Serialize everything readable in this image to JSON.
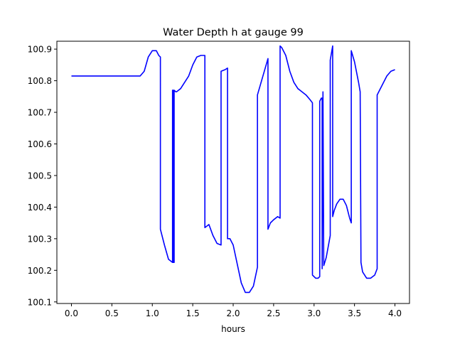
{
  "chart_data": {
    "type": "line",
    "title": "Water Depth h at gauge 99",
    "xlabel": "hours",
    "ylabel": "",
    "xlim": [
      -0.18,
      4.18
    ],
    "ylim": [
      100.095,
      100.925
    ],
    "xticks": [
      0.0,
      0.5,
      1.0,
      1.5,
      2.0,
      2.5,
      3.0,
      3.5,
      4.0
    ],
    "xtick_labels": [
      "0.0",
      "0.5",
      "1.0",
      "1.5",
      "2.0",
      "2.5",
      "3.0",
      "3.5",
      "4.0"
    ],
    "yticks": [
      100.1,
      100.2,
      100.3,
      100.4,
      100.5,
      100.6,
      100.7,
      100.8,
      100.9
    ],
    "ytick_labels": [
      "100.1",
      "100.2",
      "100.3",
      "100.4",
      "100.5",
      "100.6",
      "100.7",
      "100.8",
      "100.9"
    ],
    "grid": false,
    "series": [
      {
        "color": "#0000ff",
        "x": [
          0.0,
          0.5,
          0.85,
          0.9,
          0.95,
          1.0,
          1.05,
          1.08,
          1.1,
          1.1,
          1.15,
          1.2,
          1.25,
          1.25,
          1.26,
          1.26,
          1.27,
          1.27,
          1.29,
          1.3,
          1.35,
          1.4,
          1.45,
          1.5,
          1.55,
          1.6,
          1.65,
          1.65,
          1.7,
          1.75,
          1.8,
          1.85,
          1.85,
          1.9,
          1.93,
          1.93,
          1.96,
          2.0,
          2.05,
          2.1,
          2.15,
          2.2,
          2.25,
          2.3,
          2.3,
          2.43,
          2.43,
          2.46,
          2.5,
          2.55,
          2.58,
          2.58,
          2.6,
          2.65,
          2.7,
          2.75,
          2.8,
          2.85,
          2.9,
          2.95,
          2.98,
          2.98,
          3.02,
          3.05,
          3.07,
          3.07,
          3.09,
          3.1,
          3.1,
          3.11,
          3.11,
          3.12,
          3.15,
          3.2,
          3.2,
          3.23,
          3.23,
          3.25,
          3.28,
          3.32,
          3.36,
          3.4,
          3.44,
          3.46,
          3.46,
          3.5,
          3.55,
          3.57,
          3.58,
          3.6,
          3.65,
          3.7,
          3.75,
          3.78,
          3.78,
          3.85,
          3.9,
          3.95,
          4.0
        ],
        "y": [
          100.815,
          100.815,
          100.815,
          100.83,
          100.875,
          100.895,
          100.895,
          100.88,
          100.875,
          100.33,
          100.28,
          100.235,
          100.225,
          100.77,
          100.77,
          100.225,
          100.225,
          100.77,
          100.765,
          100.765,
          100.775,
          100.795,
          100.815,
          100.85,
          100.875,
          100.88,
          100.88,
          100.335,
          100.345,
          100.31,
          100.285,
          100.28,
          100.83,
          100.835,
          100.84,
          100.3,
          100.3,
          100.28,
          100.22,
          100.16,
          100.13,
          100.13,
          100.15,
          100.21,
          100.755,
          100.87,
          100.33,
          100.35,
          100.36,
          100.37,
          100.365,
          100.91,
          100.905,
          100.88,
          100.83,
          100.795,
          100.775,
          100.765,
          100.755,
          100.74,
          100.73,
          100.185,
          100.175,
          100.175,
          100.18,
          100.735,
          100.745,
          100.745,
          100.205,
          100.76,
          100.765,
          100.215,
          100.24,
          100.31,
          100.865,
          100.91,
          100.37,
          100.39,
          100.41,
          100.425,
          100.425,
          100.405,
          100.365,
          100.35,
          100.895,
          100.86,
          100.795,
          100.765,
          100.225,
          100.195,
          100.175,
          100.175,
          100.185,
          100.205,
          100.755,
          100.79,
          100.815,
          100.83,
          100.835
        ]
      }
    ]
  }
}
